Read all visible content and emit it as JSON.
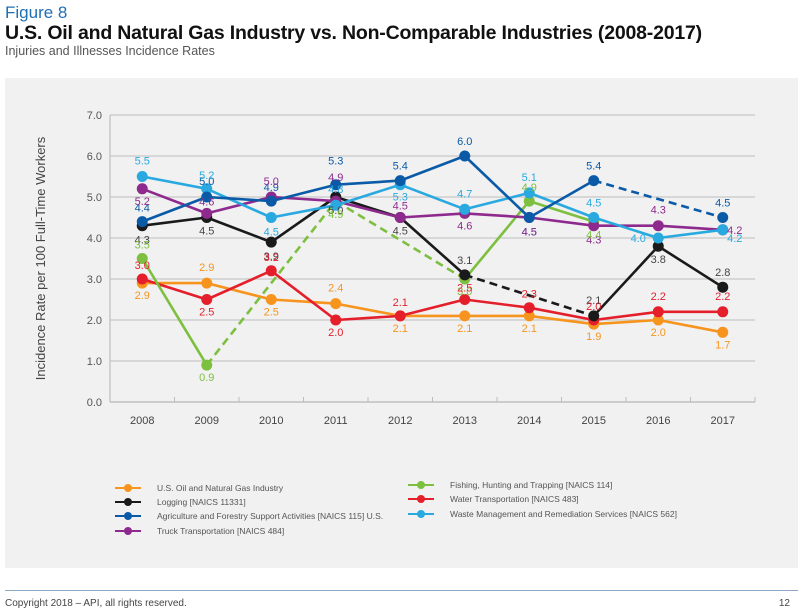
{
  "header": {
    "figure_label": "Figure 8",
    "title": "U.S. Oil and Natural Gas Industry vs. Non-Comparable Industries (2008-2017)",
    "subtitle": "Injuries and Illnesses Incidence Rates"
  },
  "footer": {
    "copyright": "Copyright 2018 – API, all rights reserved.",
    "page_number": "12"
  },
  "chart_data": {
    "type": "line",
    "title": "U.S. Oil and Natural Gas Industry vs. Non-Comparable Industries (2008-2017)",
    "subtitle": "Injuries and Illnesses Incidence Rates",
    "xlabel": "",
    "ylabel": "Incidence Rate per 100 Full-Time Workers",
    "ylim": [
      0,
      7
    ],
    "yticks": [
      "0.0",
      "1.0",
      "2.0",
      "3.0",
      "4.0",
      "5.0",
      "6.0",
      "7.0"
    ],
    "grid": true,
    "legend_position": "bottom",
    "categories": [
      "2008",
      "2009",
      "2010",
      "2011",
      "2012",
      "2013",
      "2014",
      "2015",
      "2016",
      "2017"
    ],
    "series": [
      {
        "name": "U.S. Oil and Natural Gas Industry",
        "color": "#f7941d",
        "values": [
          2.9,
          2.9,
          2.5,
          2.4,
          2.1,
          2.1,
          2.1,
          1.9,
          2.0,
          1.7
        ],
        "labels": [
          "2.9",
          "2.9",
          "2.5",
          "2.4",
          "2.1",
          "2.1",
          "2.1",
          "1.9",
          "2.0",
          "1.7"
        ]
      },
      {
        "name": "Logging [NAICS 11331]",
        "color": "#1a1a1a",
        "values": [
          4.3,
          4.5,
          3.9,
          5.0,
          4.5,
          3.1,
          null,
          2.1,
          3.8,
          2.8
        ],
        "labels": [
          "4.3",
          "4.5",
          "3.9",
          "5.0",
          "4.5",
          "3.1",
          "",
          "2.1",
          "3.8",
          "2.8"
        ]
      },
      {
        "name": "Agriculture and Forestry Support Activities [NAICS 115] U.S.",
        "color": "#0b5aa8",
        "values": [
          4.4,
          5.0,
          4.9,
          5.3,
          5.4,
          6.0,
          4.5,
          5.4,
          null,
          4.5
        ],
        "labels": [
          "4.4",
          "5.0",
          "4.9",
          "5.3",
          "5.4",
          "6.0",
          "4.5",
          "5.4",
          "",
          "4.5"
        ]
      },
      {
        "name": "Truck Transportation [NAICS 484]",
        "color": "#8e2a8e",
        "values": [
          5.2,
          4.6,
          5.0,
          4.9,
          4.5,
          4.6,
          4.5,
          4.3,
          4.3,
          4.2
        ],
        "labels": [
          "5.2",
          "4.6",
          "5.0",
          "4.9",
          "4.5",
          "4.6",
          "4.5",
          "4.3",
          "4.3",
          "4.2"
        ]
      },
      {
        "name": "Fishing, Hunting and Trapping [NAICS 114]",
        "color": "#7dbf3f",
        "values": [
          3.5,
          0.9,
          null,
          4.9,
          null,
          3.0,
          4.9,
          4.4,
          null,
          null
        ],
        "labels": [
          "3.5",
          "0.9",
          "",
          "4.9",
          "",
          "3.0",
          "4.9",
          "4.4",
          "",
          ""
        ]
      },
      {
        "name": "Water Transportation [NAICS 483]",
        "color": "#e41f2b",
        "values": [
          3.0,
          2.5,
          3.2,
          2.0,
          2.1,
          2.5,
          2.3,
          2.0,
          2.2,
          2.2
        ],
        "labels": [
          "3.0",
          "2.5",
          "3.2",
          "2.0",
          "2.1",
          "2.5",
          "2.3",
          "2.0",
          "2.2",
          "2.2"
        ]
      },
      {
        "name": "Waste Management and Remediation Services [NAICS 562]",
        "color": "#29a9e0",
        "values": [
          5.5,
          5.2,
          4.5,
          4.8,
          5.3,
          4.7,
          5.1,
          4.5,
          4.0,
          4.2
        ],
        "labels": [
          "5.5",
          "5.2",
          "4.5",
          "4.8",
          "5.3",
          "4.7",
          "5.1",
          "4.5",
          "4.0",
          "4.2"
        ]
      }
    ]
  }
}
